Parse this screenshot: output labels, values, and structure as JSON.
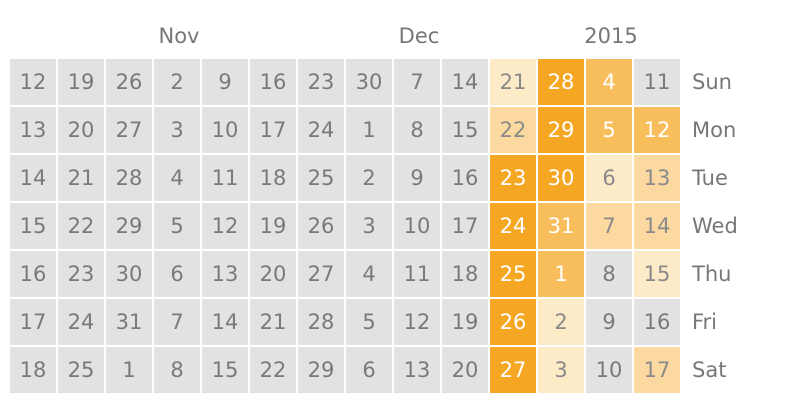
{
  "calendar": {
    "header_labels": [
      "Nov",
      "Dec",
      "2015"
    ],
    "day_labels": [
      "Sun",
      "Mon",
      "Tue",
      "Wed",
      "Thu",
      "Fri",
      "Sat"
    ],
    "level_colors": {
      "0": "#e2e2e2",
      "1": "#fdebc7",
      "2": "#fcd9a0",
      "3": "#f9be5c",
      "4": "#f5a623"
    },
    "columns": [
      {
        "dates": [
          "12",
          "13",
          "14",
          "15",
          "16",
          "17",
          "18"
        ],
        "levels": [
          0,
          0,
          0,
          0,
          0,
          0,
          0
        ]
      },
      {
        "dates": [
          "19",
          "20",
          "21",
          "22",
          "23",
          "24",
          "25"
        ],
        "levels": [
          0,
          0,
          0,
          0,
          0,
          0,
          0
        ]
      },
      {
        "dates": [
          "26",
          "27",
          "28",
          "29",
          "30",
          "31",
          "1"
        ],
        "levels": [
          0,
          0,
          0,
          0,
          0,
          0,
          0
        ]
      },
      {
        "dates": [
          "2",
          "3",
          "4",
          "5",
          "6",
          "7",
          "8"
        ],
        "levels": [
          0,
          0,
          0,
          0,
          0,
          0,
          0
        ]
      },
      {
        "dates": [
          "9",
          "10",
          "11",
          "12",
          "13",
          "14",
          "15"
        ],
        "levels": [
          0,
          0,
          0,
          0,
          0,
          0,
          0
        ]
      },
      {
        "dates": [
          "16",
          "17",
          "18",
          "19",
          "20",
          "21",
          "22"
        ],
        "levels": [
          0,
          0,
          0,
          0,
          0,
          0,
          0
        ]
      },
      {
        "dates": [
          "23",
          "24",
          "25",
          "26",
          "27",
          "28",
          "29"
        ],
        "levels": [
          0,
          0,
          0,
          0,
          0,
          0,
          0
        ]
      },
      {
        "dates": [
          "30",
          "1",
          "2",
          "3",
          "4",
          "5",
          "6"
        ],
        "levels": [
          0,
          0,
          0,
          0,
          0,
          0,
          0
        ]
      },
      {
        "dates": [
          "7",
          "8",
          "9",
          "10",
          "11",
          "12",
          "13"
        ],
        "levels": [
          0,
          0,
          0,
          0,
          0,
          0,
          0
        ]
      },
      {
        "dates": [
          "14",
          "15",
          "16",
          "17",
          "18",
          "19",
          "20"
        ],
        "levels": [
          0,
          0,
          0,
          0,
          0,
          0,
          0
        ]
      },
      {
        "dates": [
          "21",
          "22",
          "23",
          "24",
          "25",
          "26",
          "27"
        ],
        "levels": [
          1,
          2,
          4,
          4,
          4,
          4,
          4
        ]
      },
      {
        "dates": [
          "28",
          "29",
          "30",
          "31",
          "1",
          "2",
          "3"
        ],
        "levels": [
          4,
          4,
          4,
          3,
          3,
          1,
          1
        ]
      },
      {
        "dates": [
          "4",
          "5",
          "6",
          "7",
          "8",
          "9",
          "10"
        ],
        "levels": [
          3,
          3,
          1,
          2,
          0,
          0,
          0
        ]
      },
      {
        "dates": [
          "11",
          "12",
          "13",
          "14",
          "15",
          "16",
          "17"
        ],
        "levels": [
          0,
          3,
          2,
          2,
          1,
          0,
          2
        ]
      }
    ]
  }
}
